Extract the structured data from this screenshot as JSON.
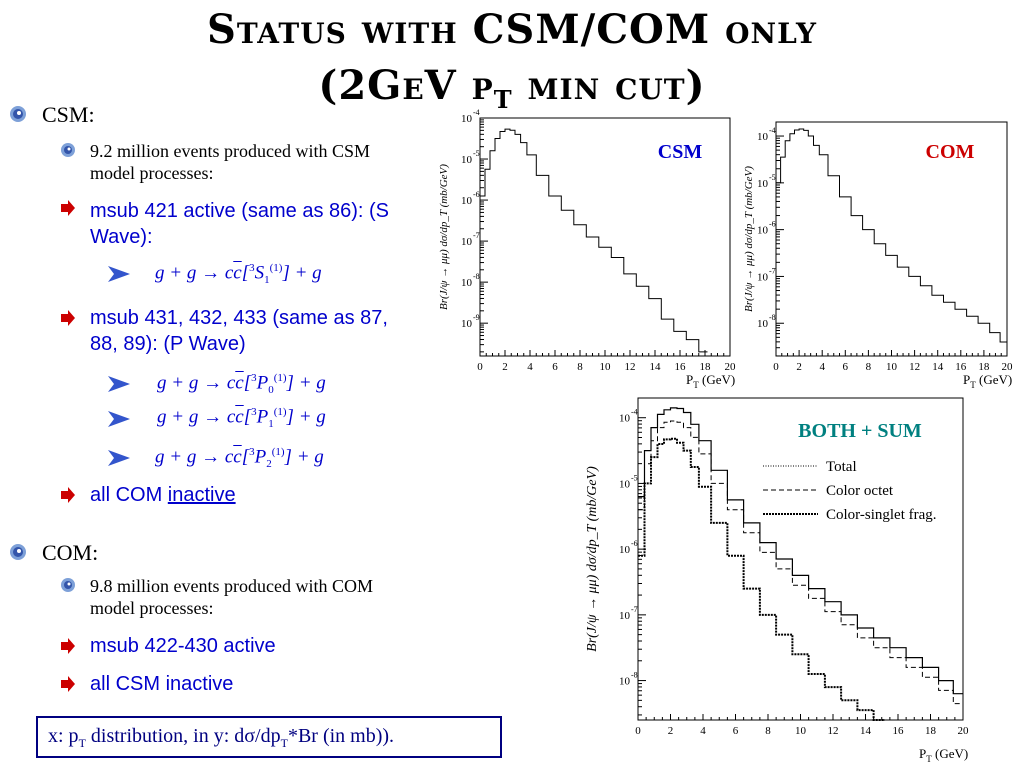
{
  "slide": {
    "title_line1": "Status with CSM/COM only",
    "title_line2_a": "(2GeV p",
    "title_line2_sub": "T",
    "title_line2_b": " min cut)"
  },
  "csm": {
    "heading": "CSM:",
    "events": "9.2 million events produced with CSM model processes:",
    "msub1": "msub 421 active (same as 86): (S Wave):",
    "eq1": {
      "lhs": "g + g → c",
      "cbar": "c",
      "pre": "[",
      "sup3": "3",
      "state": "S",
      "sub": "1",
      "sup1": "(1)",
      "rhs": "] + g"
    },
    "msub2": "msub 431, 432, 433 (same as 87, 88, 89): (P Wave)",
    "eqs": [
      {
        "lhs": "g + g → c",
        "cbar": "c",
        "pre": "[",
        "sup3": "3",
        "state": "P",
        "sub": "0",
        "sup1": "(1)",
        "rhs": "] + g"
      },
      {
        "lhs": "g + g → c",
        "cbar": "c",
        "pre": "[",
        "sup3": "3",
        "state": "P",
        "sub": "1",
        "sup1": "(1)",
        "rhs": "] + g"
      },
      {
        "lhs": "g + g → c",
        "cbar": "c",
        "pre": "[",
        "sup3": "3",
        "state": "P",
        "sub": "2",
        "sup1": "(1)",
        "rhs": "] + g"
      }
    ],
    "com_state_a": "all COM ",
    "com_state_b": "inactive"
  },
  "com": {
    "heading": "COM:",
    "events": "9.8 million events produced with COM model processes:",
    "msub": "msub 422-430 active",
    "csm_state": "all CSM inactive"
  },
  "note": {
    "a": "x: p",
    "sub1": "T",
    "b": " distribution, in y: dσ/dp",
    "sub2": "T",
    "c": "*Br (in mb))."
  },
  "colors": {
    "title": "#000000",
    "blue_text": "#0000cc",
    "csm_label": "#0000cc",
    "com_label": "#cc0000",
    "both_label": "#008080",
    "bullet_icon": "#3355aa",
    "arrow_bullet": "#cc0000",
    "chevron": "#3355cc"
  },
  "chart_data": [
    {
      "type": "line",
      "label": "CSM",
      "xlabel": "P_T (GeV)",
      "ylabel": "Br(J/ψ → μμ) dσ/dp_T (mb/GeV)",
      "xlim": [
        0,
        20
      ],
      "ylim_log10": [
        -9.8,
        -4
      ],
      "xticks": [
        0,
        2,
        4,
        6,
        8,
        10,
        12,
        14,
        16,
        18,
        20
      ],
      "ytick_exponents": [
        -4,
        -5,
        -6,
        -7,
        -8,
        -9
      ],
      "series": [
        {
          "x": [
            0.2,
            0.6,
            1.0,
            1.4,
            1.8,
            2.2,
            2.6,
            3.0,
            3.5,
            4.0,
            5.0,
            6.0,
            7.0,
            8.0,
            9.0,
            10.0,
            11.0,
            12.0,
            13.0,
            14.0,
            15.0,
            16.0,
            17.0,
            18.0
          ],
          "log10_y": [
            -5.9,
            -5.25,
            -4.8,
            -4.5,
            -4.33,
            -4.27,
            -4.3,
            -4.4,
            -4.6,
            -4.9,
            -5.4,
            -5.9,
            -6.25,
            -6.6,
            -6.9,
            -7.15,
            -7.4,
            -7.8,
            -8.1,
            -8.4,
            -8.9,
            -9.2,
            -9.4,
            -9.7
          ]
        }
      ]
    },
    {
      "type": "line",
      "label": "COM",
      "xlabel": "P_T (GeV)",
      "ylabel": "Br(J/ψ → μμ) dσ/dp_T (mb/GeV)",
      "xlim": [
        0,
        20
      ],
      "ylim_log10": [
        -8.7,
        -3.7
      ],
      "xticks": [
        0,
        2,
        4,
        6,
        8,
        10,
        12,
        14,
        16,
        18,
        20
      ],
      "ytick_exponents": [
        -4,
        -5,
        -6,
        -7,
        -8
      ],
      "series": [
        {
          "x": [
            0.2,
            0.6,
            1.0,
            1.4,
            1.8,
            2.2,
            2.6,
            3.0,
            3.5,
            4.0,
            5.0,
            6.0,
            7.0,
            8.0,
            9.0,
            10.0,
            11.0,
            12.0,
            13.0,
            14.0,
            15.0,
            16.0,
            17.0,
            18.0,
            19.0,
            19.8
          ],
          "log10_y": [
            -5.0,
            -4.45,
            -4.1,
            -3.95,
            -3.87,
            -3.85,
            -3.88,
            -4.0,
            -4.2,
            -4.4,
            -4.85,
            -5.3,
            -5.7,
            -6.0,
            -6.3,
            -6.55,
            -6.8,
            -7.0,
            -7.2,
            -7.4,
            -7.55,
            -7.7,
            -7.85,
            -8.0,
            -8.2,
            -8.4
          ]
        }
      ]
    },
    {
      "type": "line",
      "label": "BOTH + SUM",
      "xlabel": "P_T (GeV)",
      "ylabel": "Br(J/ψ → μμ) dσ/dp_T (mb/GeV)",
      "xlim": [
        0,
        20
      ],
      "ylim_log10": [
        -8.6,
        -3.7
      ],
      "xticks": [
        0,
        2,
        4,
        6,
        8,
        10,
        12,
        14,
        16,
        18,
        20
      ],
      "ytick_exponents": [
        -4,
        -5,
        -6,
        -7,
        -8
      ],
      "legend": [
        "Total",
        "Color octet",
        "Color-singlet frag."
      ],
      "legend_position": "top-right",
      "series": [
        {
          "name": "Total",
          "x": [
            0.2,
            0.6,
            1.0,
            1.4,
            1.8,
            2.2,
            2.6,
            3.0,
            3.5,
            4.0,
            5.0,
            6.0,
            7.0,
            8.0,
            9.0,
            10.0,
            11.0,
            12.0,
            13.0,
            14.0,
            15.0,
            16.0,
            17.0,
            18.0,
            19.0,
            19.8
          ],
          "log10_y": [
            -5.2,
            -4.5,
            -4.15,
            -3.95,
            -3.88,
            -3.85,
            -3.86,
            -3.92,
            -4.1,
            -4.35,
            -4.8,
            -5.25,
            -5.6,
            -5.9,
            -6.15,
            -6.4,
            -6.6,
            -6.8,
            -7.0,
            -7.2,
            -7.35,
            -7.5,
            -7.65,
            -7.8,
            -8.0,
            -8.2
          ]
        },
        {
          "name": "Color octet",
          "x": [
            0.2,
            0.6,
            1.0,
            1.4,
            1.8,
            2.2,
            2.6,
            3.0,
            3.5,
            4.0,
            5.0,
            6.0,
            7.0,
            8.0,
            9.0,
            10.0,
            11.0,
            12.0,
            13.0,
            14.0,
            15.0,
            16.0,
            17.0,
            18.0,
            19.0,
            19.8
          ],
          "log10_y": [
            -5.4,
            -4.7,
            -4.35,
            -4.15,
            -4.07,
            -4.05,
            -4.07,
            -4.15,
            -4.3,
            -4.55,
            -5.0,
            -5.4,
            -5.75,
            -6.05,
            -6.3,
            -6.55,
            -6.75,
            -6.95,
            -7.15,
            -7.35,
            -7.5,
            -7.65,
            -7.8,
            -7.95,
            -8.15,
            -8.35
          ]
        },
        {
          "name": "Color-singlet frag.",
          "x": [
            0.2,
            0.6,
            1.0,
            1.4,
            1.8,
            2.2,
            2.6,
            3.0,
            3.5,
            4.0,
            5.0,
            6.0,
            7.0,
            8.0,
            9.0,
            10.0,
            11.0,
            12.0,
            13.0,
            14.0,
            15.0
          ],
          "log10_y": [
            -6.1,
            -5.0,
            -4.6,
            -4.4,
            -4.33,
            -4.32,
            -4.38,
            -4.5,
            -4.75,
            -5.05,
            -5.6,
            -6.1,
            -6.6,
            -7.0,
            -7.3,
            -7.6,
            -7.9,
            -8.1,
            -8.3,
            -8.45,
            -8.6
          ]
        }
      ]
    }
  ]
}
